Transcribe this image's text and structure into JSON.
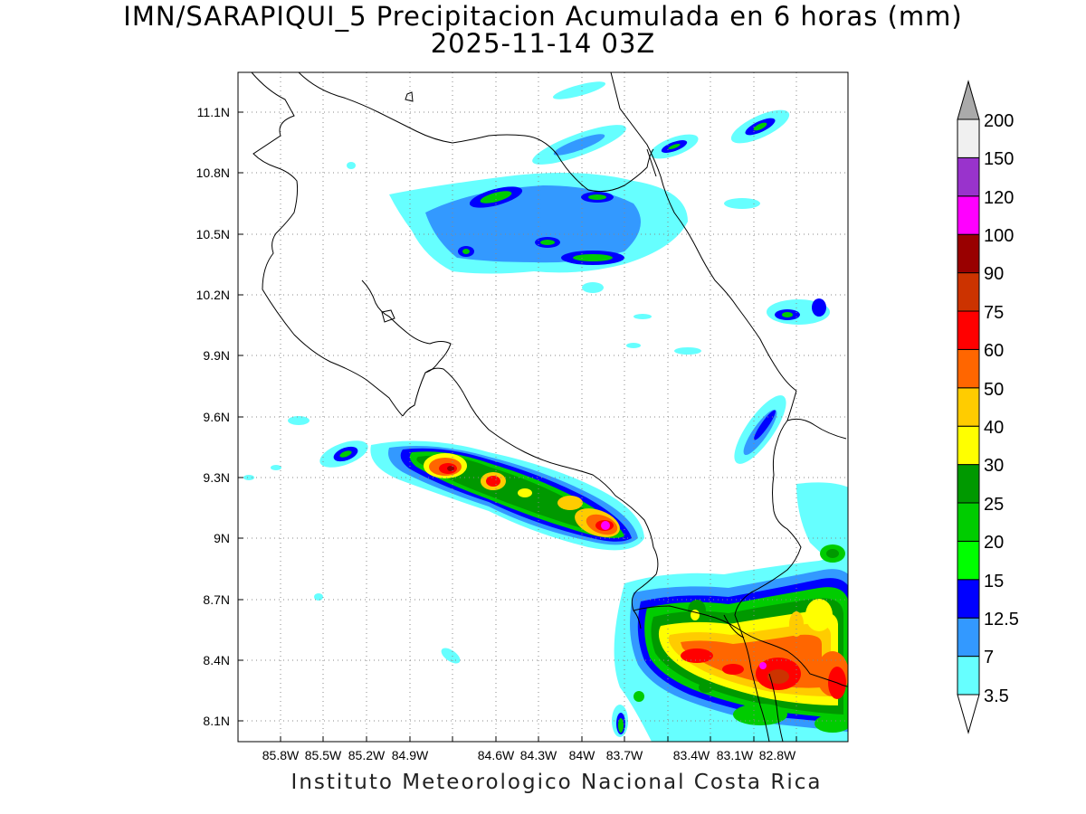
{
  "title": {
    "line1": "IMN/SARAPIQUI_5 Precipitacion Acumulada en 6 horas (mm)",
    "line2": "2025-11-14 03Z"
  },
  "footer": "Instituto Meteorologico Nacional Costa Rica",
  "axes": {
    "x_ticks": [
      "85.8W",
      "85.5W",
      "85.2W",
      "84.9W",
      "84.6W",
      "84.3W",
      "84W",
      "83.7W",
      "83.4W",
      "83.1W",
      "82.8W"
    ],
    "y_ticks": [
      "11.1N",
      "10.8N",
      "10.5N",
      "10.2N",
      "9.9N",
      "9.6N",
      "9.3N",
      "9N",
      "8.7N",
      "8.4N",
      "8.1N"
    ],
    "grid": "dotted"
  },
  "colorbar": {
    "levels": [
      "3.5",
      "7",
      "12.5",
      "15",
      "20",
      "25",
      "30",
      "40",
      "50",
      "60",
      "75",
      "90",
      "100",
      "120",
      "150",
      "200"
    ],
    "colors": [
      "#66ffff",
      "#3399ff",
      "#0000ff",
      "#00ff00",
      "#00cc00",
      "#009900",
      "#ffff00",
      "#ffcc00",
      "#ff6600",
      "#ff0000",
      "#cc3300",
      "#990000",
      "#ff00ff",
      "#9933cc",
      "#f0f0f0",
      "#aaaaaa"
    ]
  }
}
